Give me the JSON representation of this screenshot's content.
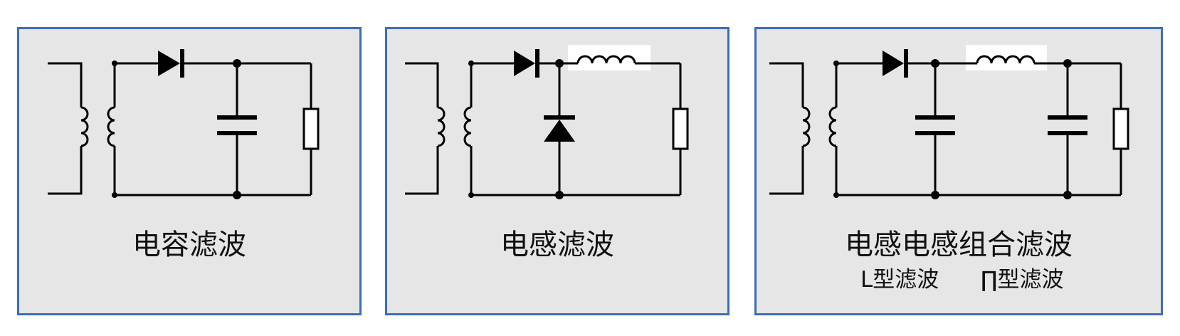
{
  "colors": {
    "panel_bg": "#e6e6e6",
    "panel_border": "#3d6db5",
    "wire": "#000000"
  },
  "panels": [
    {
      "title": "电容滤波",
      "components": [
        "transformer",
        "diode",
        "capacitor",
        "load-resistor"
      ]
    },
    {
      "title": "电感滤波",
      "components": [
        "transformer",
        "diode",
        "freewheel-diode",
        "inductor",
        "load-resistor"
      ]
    },
    {
      "title": "电感电感组合滤波",
      "subtitles": {
        "l_type": "L型滤波",
        "pi_type": "∏型滤波"
      },
      "components": [
        "transformer",
        "diode",
        "capacitor",
        "inductor",
        "capacitor",
        "load-resistor"
      ]
    }
  ]
}
